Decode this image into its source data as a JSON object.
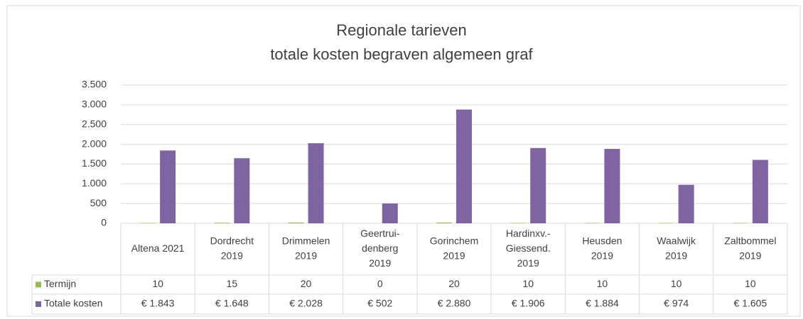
{
  "chart_data": {
    "type": "bar",
    "title": [
      "Regionale tarieven",
      "totale kosten begraven algemeen graf"
    ],
    "categories": [
      [
        "Altena 2021"
      ],
      [
        "Dordrecht",
        "2019"
      ],
      [
        "Drimmelen",
        "2019"
      ],
      [
        "Geertrui-",
        "denberg",
        "2019"
      ],
      [
        "Gorinchem",
        "2019"
      ],
      [
        "Hardinxv.-",
        "Giessend.",
        "2019"
      ],
      [
        "Heusden",
        "2019"
      ],
      [
        "Waalwijk",
        "2019"
      ],
      [
        "Zaltbommel",
        "2019"
      ]
    ],
    "series": [
      {
        "name": "Termijn",
        "color": "#9bbb59",
        "values": [
          10,
          15,
          20,
          0,
          20,
          10,
          10,
          10,
          10
        ]
      },
      {
        "name": "Totale kosten",
        "color": "#8064a2",
        "values": [
          1843,
          1648,
          2028,
          502,
          2880,
          1906,
          1884,
          974,
          1605
        ],
        "value_labels": [
          "€ 1.843",
          "€ 1.648",
          "€ 2.028",
          "€ 502",
          "€ 2.880",
          "€ 1.906",
          "€ 1.884",
          "€ 974",
          "€ 1.605"
        ]
      }
    ],
    "ylim": [
      0,
      3500
    ],
    "yticks": [
      0,
      500,
      {
        "value": 1000,
        "label": "1.000"
      },
      {
        "value": 1500,
        "label": "1.500"
      },
      {
        "value": 2000,
        "label": "2.000"
      },
      {
        "value": 2500,
        "label": "2.500"
      },
      {
        "value": 3000,
        "label": "3.000"
      },
      {
        "value": 3500,
        "label": "3.500"
      }
    ],
    "grid": true
  }
}
